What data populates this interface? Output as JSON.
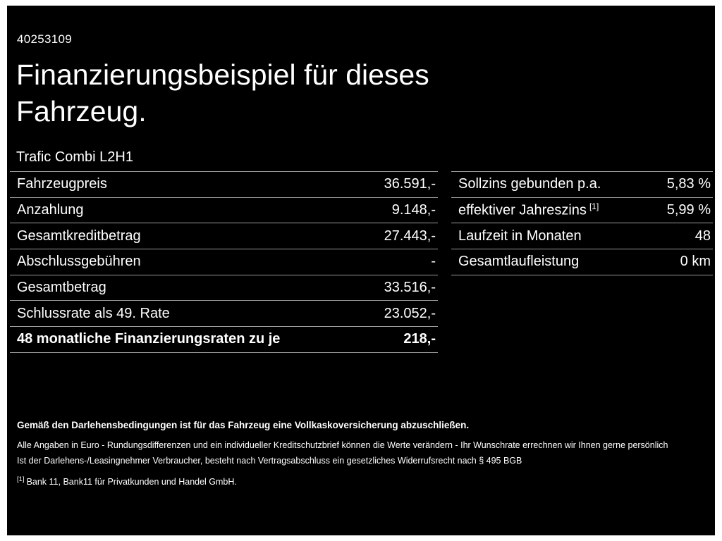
{
  "colors": {
    "background": "#000000",
    "text": "#ffffff",
    "divider": "#9b9b9b"
  },
  "page": {
    "id_number": "40253109",
    "title_line1": "Finanzierungsbeispiel für dieses",
    "title_line2": "Fahrzeug.",
    "vehicle_model": "Trafic Combi L2H1"
  },
  "left_table": {
    "rows": [
      {
        "label": "Fahrzeugpreis",
        "value": "36.591,-"
      },
      {
        "label": "Anzahlung",
        "value": "9.148,-"
      },
      {
        "label": "Gesamtkreditbetrag",
        "value": "27.443,-"
      },
      {
        "label": "Abschlussgebühren",
        "value": "-"
      },
      {
        "label": "Gesamtbetrag",
        "value": "33.516,-"
      },
      {
        "label": "Schlussrate als 49. Rate",
        "value": "23.052,-"
      },
      {
        "label": "48 monatliche Finanzierungsraten zu je",
        "value": "218,-"
      }
    ]
  },
  "right_table": {
    "rows": [
      {
        "label": "Sollzins gebunden p.a.",
        "value": "5,83 %"
      },
      {
        "label": "effektiver Jahreszins",
        "label_sup": "[1]",
        "value": "5,99 %"
      },
      {
        "label": "Laufzeit in Monaten",
        "value": "48"
      },
      {
        "label": "Gesamtlaufleistung",
        "value": "0 km"
      }
    ]
  },
  "footer": {
    "bold_note": "Gemäß den Darlehensbedingungen ist für das Fahrzeug eine Vollkaskoversicherung abzuschließen.",
    "note1": "Alle Angaben in Euro - Rundungsdifferenzen und ein individueller Kreditschutzbrief können die Werte verändern - Ihr Wunschrate errechnen wir Ihnen gerne persönlich",
    "note2": "Ist der Darlehens-/Leasingnehmer Verbraucher, besteht nach Vertragsabschluss ein gesetzliches Widerrufsrecht nach § 495 BGB",
    "footnote_marker": "[1]",
    "footnote_text": "Bank 11, Bank11 für Privatkunden und Handel GmbH."
  }
}
